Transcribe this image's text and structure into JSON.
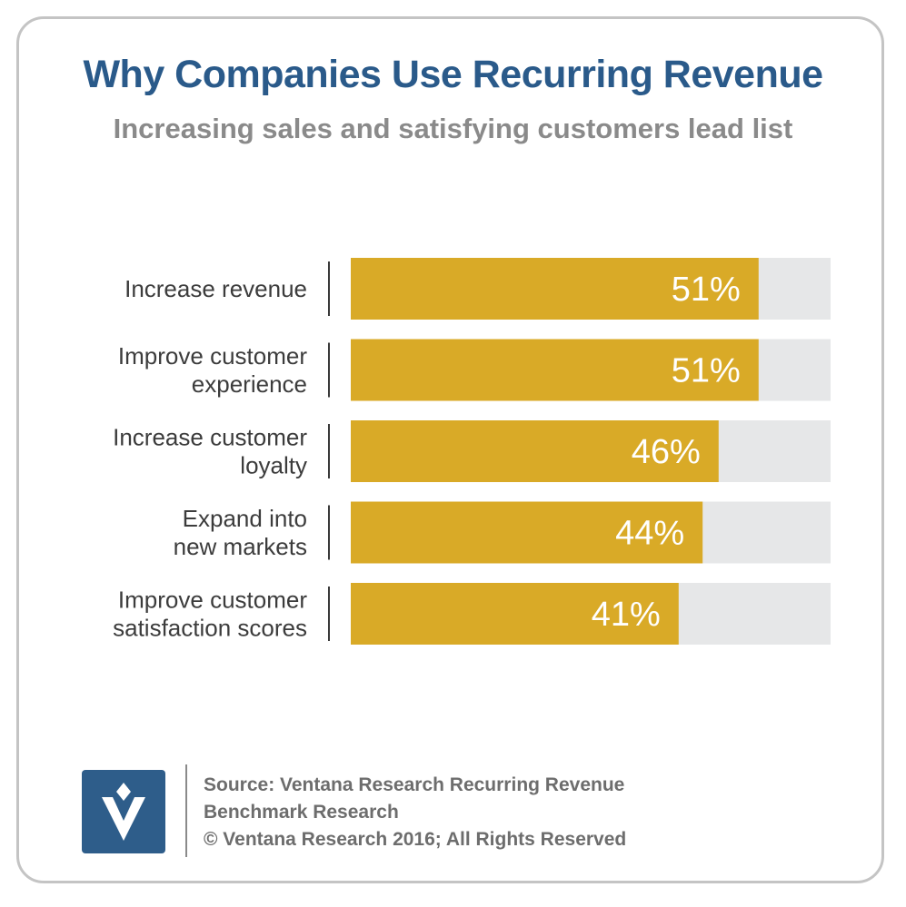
{
  "title": "Why Companies Use Recurring Revenue",
  "subtitle": "Increasing sales and satisfying customers lead list",
  "chart_data": {
    "type": "bar",
    "orientation": "horizontal",
    "title": "Why Companies Use Recurring Revenue",
    "subtitle": "Increasing sales and satisfying customers lead list",
    "categories": [
      [
        "Increase revenue"
      ],
      [
        "Improve customer",
        "experience"
      ],
      [
        "Increase customer",
        "loyalty"
      ],
      [
        "Expand into",
        "new markets"
      ],
      [
        "Improve customer",
        "satisfaction scores"
      ]
    ],
    "values": [
      51,
      51,
      46,
      44,
      41
    ],
    "value_labels": [
      "51%",
      "51%",
      "46%",
      "44%",
      "41%"
    ],
    "xlim": [
      0,
      60
    ],
    "bar_color": "#d9aa27",
    "track_color": "#e6e7e8",
    "label_color": "#ffffff",
    "grid": false
  },
  "footer": {
    "source_line1": "Source: Ventana Research Recurring Revenue",
    "source_line2": "Benchmark Research",
    "copyright": "© Ventana Research 2016; All Rights Reserved",
    "logo_icon": "ventana-logo-icon"
  }
}
